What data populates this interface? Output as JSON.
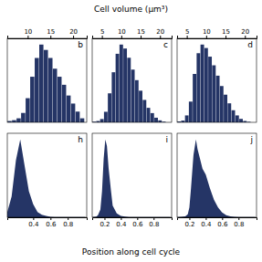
{
  "title": "Cell volume (μm³)",
  "xlabel": "Position along cell cycle",
  "chart_data": [
    {
      "type": "bar",
      "title": "b",
      "color": "#253566",
      "x": [
        6,
        7,
        8,
        9,
        10,
        11,
        12,
        13,
        14,
        15,
        16,
        17,
        18,
        19,
        20,
        21,
        22
      ],
      "values": [
        0.05,
        0.08,
        0.15,
        0.35,
        0.9,
        1.7,
        2.4,
        2.9,
        2.7,
        2.4,
        2.0,
        1.7,
        1.4,
        1.0,
        0.7,
        0.4,
        0.15
      ],
      "xlim": [
        5.5,
        23
      ],
      "xticks": [
        10,
        15,
        20
      ],
      "ylim": [
        0,
        3.132
      ],
      "tick_labels": "x",
      "grid": false
    },
    {
      "type": "bar",
      "title": "c",
      "color": "#253566",
      "x": [
        3,
        4,
        5,
        6,
        7,
        8,
        9,
        10,
        11,
        12,
        13,
        14,
        15,
        16,
        17,
        18,
        19,
        20,
        21
      ],
      "values": [
        0.05,
        0.1,
        0.25,
        0.8,
        2.2,
        3.8,
        5.2,
        5.9,
        5.6,
        4.9,
        4.0,
        3.2,
        2.4,
        1.7,
        1.1,
        0.7,
        0.35,
        0.15,
        0.05
      ],
      "xlim": [
        2.5,
        23
      ],
      "xticks": [
        5,
        10,
        15,
        20
      ],
      "ylim": [
        0,
        6.372
      ],
      "tick_labels": "x",
      "grid": false
    },
    {
      "type": "bar",
      "title": "d",
      "color": "#253566",
      "x": [
        3,
        4,
        5,
        6,
        7,
        8,
        9,
        10,
        11,
        12,
        13,
        14,
        15,
        16,
        17,
        18,
        19,
        20,
        21
      ],
      "values": [
        0.05,
        0.1,
        0.4,
        1.2,
        2.8,
        4.0,
        4.5,
        4.3,
        3.8,
        3.3,
        2.7,
        2.1,
        1.6,
        1.1,
        0.7,
        0.4,
        0.2,
        0.08,
        0.03
      ],
      "xlim": [
        2.5,
        23
      ],
      "xticks": [
        5,
        10,
        15,
        20
      ],
      "ylim": [
        0,
        4.86
      ],
      "tick_labels": "x",
      "grid": false
    },
    {
      "type": "area",
      "title": "h",
      "color": "#253566",
      "x": [
        0.1,
        0.15,
        0.2,
        0.25,
        0.3,
        0.35,
        0.4,
        0.45,
        0.5,
        0.55,
        0.6,
        0.65,
        0.7,
        0.75,
        0.8,
        0.85,
        0.9,
        0.95,
        1.0
      ],
      "values": [
        0.2,
        0.8,
        2.2,
        3.0,
        2.0,
        1.0,
        0.5,
        0.2,
        0.1,
        0.05,
        0.02,
        0.01,
        0.01,
        0.01,
        0.01,
        0.01,
        0.01,
        0.01,
        0.01
      ],
      "xlim": [
        0.1,
        1.02
      ],
      "xticks": [
        0.4,
        0.6,
        0.8
      ],
      "ylim": [
        0,
        3.24
      ],
      "tick_labels": "x",
      "grid": false
    },
    {
      "type": "area",
      "title": "i",
      "color": "#253566",
      "x": [
        0.05,
        0.1,
        0.12,
        0.15,
        0.17,
        0.19,
        0.21,
        0.23,
        0.25,
        0.28,
        0.3,
        0.35,
        0.4,
        0.45,
        0.5,
        0.55,
        0.6,
        0.65,
        0.7,
        0.75,
        0.8,
        0.85,
        0.9,
        0.95,
        1.0
      ],
      "values": [
        0.01,
        0.05,
        0.15,
        0.6,
        2.0,
        4.5,
        6.0,
        5.5,
        3.8,
        2.0,
        0.9,
        0.3,
        0.1,
        0.05,
        0.02,
        0.01,
        0.01,
        0.01,
        0.01,
        0.01,
        0.01,
        0.01,
        0.01,
        0.01,
        0.01
      ],
      "xlim": [
        0.05,
        1.02
      ],
      "xticks": [
        0.2,
        0.4,
        0.6,
        0.8
      ],
      "ylim": [
        0,
        6.48
      ],
      "tick_labels": "x",
      "grid": false
    },
    {
      "type": "area",
      "title": "j",
      "color": "#253566",
      "x": [
        0.05,
        0.1,
        0.15,
        0.18,
        0.2,
        0.22,
        0.25,
        0.28,
        0.3,
        0.33,
        0.36,
        0.4,
        0.45,
        0.5,
        0.55,
        0.6,
        0.65,
        0.7,
        0.75,
        0.8,
        0.85,
        0.9,
        0.95,
        1.0
      ],
      "values": [
        0.01,
        0.02,
        0.05,
        0.15,
        0.5,
        1.5,
        3.2,
        4.0,
        3.5,
        3.0,
        2.5,
        2.2,
        1.5,
        0.9,
        0.5,
        0.25,
        0.1,
        0.05,
        0.02,
        0.01,
        0.01,
        0.01,
        0.01,
        0.01
      ],
      "xlim": [
        0.05,
        1.02
      ],
      "xticks": [
        0.2,
        0.4,
        0.6,
        0.8
      ],
      "ylim": [
        0,
        4.32
      ],
      "tick_labels": "x",
      "grid": false
    }
  ]
}
